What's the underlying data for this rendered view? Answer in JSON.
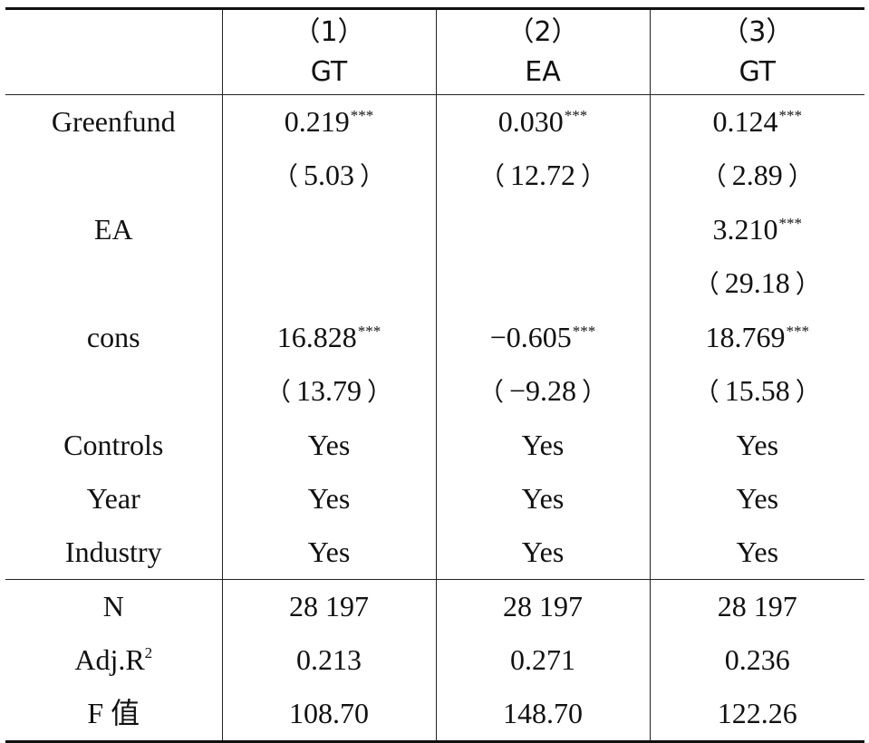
{
  "table": {
    "columns": [
      {
        "number": "（1）",
        "variable": "GT"
      },
      {
        "number": "（2）",
        "variable": "EA"
      },
      {
        "number": "（3）",
        "variable": "GT"
      }
    ],
    "significance_marker": "***",
    "rows": [
      {
        "label": "Greenfund",
        "cells": [
          {
            "value": "0.219",
            "stars": "***"
          },
          {
            "value": "0.030",
            "stars": "***"
          },
          {
            "value": "0.124",
            "stars": "***"
          }
        ]
      },
      {
        "label": "",
        "cells": [
          {
            "tstat": "5.03"
          },
          {
            "tstat": "12.72"
          },
          {
            "tstat": "2.89"
          }
        ]
      },
      {
        "label": "EA",
        "cells": [
          {
            "value": ""
          },
          {
            "value": ""
          },
          {
            "value": "3.210",
            "stars": "***"
          }
        ]
      },
      {
        "label": "",
        "cells": [
          {
            "tstat": ""
          },
          {
            "tstat": ""
          },
          {
            "tstat": "29.18"
          }
        ]
      },
      {
        "label": "cons",
        "cells": [
          {
            "value": "16.828",
            "stars": "***"
          },
          {
            "value": "−0.605",
            "stars": "***"
          },
          {
            "value": "18.769",
            "stars": "***"
          }
        ]
      },
      {
        "label": "",
        "cells": [
          {
            "tstat": "13.79"
          },
          {
            "tstat": "−9.28"
          },
          {
            "tstat": "15.58"
          }
        ]
      },
      {
        "label": "Controls",
        "cells": [
          {
            "value": "Yes"
          },
          {
            "value": "Yes"
          },
          {
            "value": "Yes"
          }
        ]
      },
      {
        "label": "Year",
        "cells": [
          {
            "value": "Yes"
          },
          {
            "value": "Yes"
          },
          {
            "value": "Yes"
          }
        ]
      },
      {
        "label": "Industry",
        "cells": [
          {
            "value": "Yes"
          },
          {
            "value": "Yes"
          },
          {
            "value": "Yes"
          }
        ]
      }
    ],
    "stats": [
      {
        "label": "N",
        "cells": [
          "28 197",
          "28 197",
          "28 197"
        ]
      },
      {
        "label": "Adj.R",
        "label_sup": "2",
        "cells": [
          "0.213",
          "0.271",
          "0.236"
        ]
      },
      {
        "label": "F 值",
        "cells": [
          "108.70",
          "148.70",
          "122.26"
        ]
      }
    ]
  }
}
